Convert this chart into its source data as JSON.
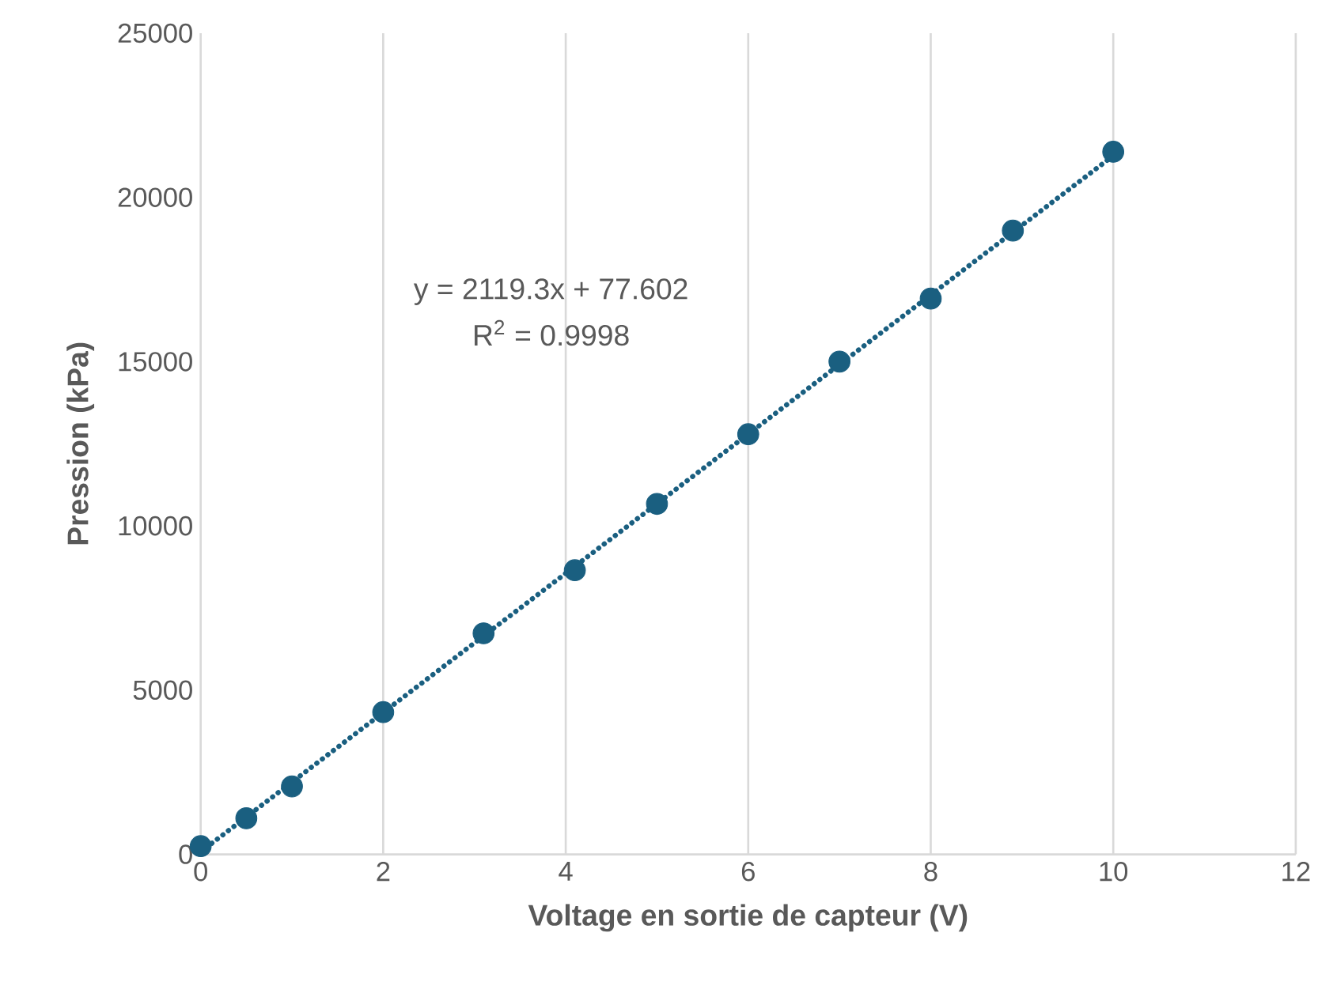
{
  "chart_data": {
    "type": "scatter",
    "xlabel": "Voltage en sortie de capteur (V)",
    "ylabel": "Pression (kPa)",
    "xlim": [
      0,
      12
    ],
    "ylim": [
      0,
      25000
    ],
    "xticks": [
      0,
      2,
      4,
      6,
      8,
      10,
      12
    ],
    "yticks": [
      0,
      5000,
      10000,
      15000,
      20000,
      25000
    ],
    "grid": "x",
    "series": [
      {
        "marker": "circle",
        "color": "#1a5f80",
        "x": [
          0,
          0.5,
          1,
          2,
          3.1,
          4.1,
          5,
          6,
          7,
          8,
          8.9,
          10
        ],
        "values": [
          250,
          1100,
          2070,
          4330,
          6730,
          8650,
          10670,
          12790,
          15000,
          16920,
          18990,
          21390
        ]
      },
      {
        "type": "line",
        "marker": "none",
        "line_style": "dotted",
        "color": "#1a5f80",
        "x": [
          0,
          10
        ],
        "values": [
          80,
          21270
        ]
      }
    ],
    "annotations": [
      "y = 2119.3x + 77.602",
      "R$^{2}$ = 0.9998"
    ]
  }
}
